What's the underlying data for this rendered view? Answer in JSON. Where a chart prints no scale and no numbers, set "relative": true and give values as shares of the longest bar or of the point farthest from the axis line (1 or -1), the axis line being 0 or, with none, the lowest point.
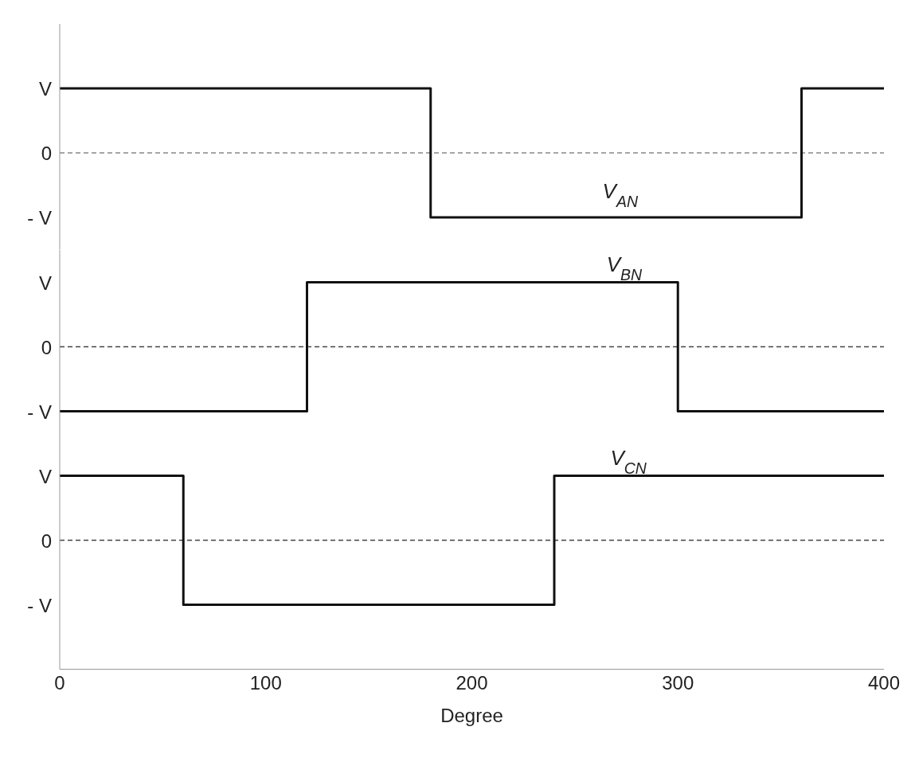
{
  "chart_data": [
    {
      "type": "step",
      "x": [
        0,
        180,
        360,
        400
      ],
      "series": [
        {
          "color": "#111111",
          "values": [
            1,
            -1,
            1,
            1
          ]
        }
      ],
      "xlim": [
        0,
        400
      ],
      "relative": true,
      "ref_lines": [
        {
          "axis": "y",
          "value": 0,
          "color": "#888888",
          "line_style": "dashed"
        }
      ],
      "annotations": [
        "V",
        "0",
        "- V",
        {
          "text": "V$_{AN}$",
          "x": 272,
          "y": -1
        }
      ],
      "tick_labels": false,
      "grid": false,
      "legend": false
    },
    {
      "type": "step",
      "x": [
        0,
        120,
        300,
        400
      ],
      "series": [
        {
          "color": "#111111",
          "values": [
            -1,
            1,
            -1,
            -1
          ]
        }
      ],
      "xlim": [
        0,
        400
      ],
      "relative": true,
      "ref_lines": [
        {
          "axis": "y",
          "value": 0,
          "color": "#444444",
          "line_style": "dashed"
        }
      ],
      "annotations": [
        "V",
        "0",
        "- V",
        {
          "text": "V$_{BN}$",
          "x": 274,
          "y": 1
        }
      ],
      "tick_labels": false,
      "grid": false,
      "legend": false
    },
    {
      "type": "step",
      "x": [
        0,
        60,
        240,
        400
      ],
      "series": [
        {
          "color": "#111111",
          "values": [
            1,
            -1,
            1,
            1
          ]
        }
      ],
      "xlim": [
        0,
        400
      ],
      "xticks": [
        0,
        100,
        200,
        300,
        400
      ],
      "xlabel": "Degree",
      "relative": true,
      "ref_lines": [
        {
          "axis": "y",
          "value": 0,
          "color": "#444444",
          "line_style": "dashed"
        }
      ],
      "annotations": [
        "V",
        "0",
        "- V",
        {
          "text": "V$_{CN}$",
          "x": 276,
          "y": 1
        }
      ],
      "tick_labels": "x",
      "grid": false,
      "legend": false
    }
  ]
}
